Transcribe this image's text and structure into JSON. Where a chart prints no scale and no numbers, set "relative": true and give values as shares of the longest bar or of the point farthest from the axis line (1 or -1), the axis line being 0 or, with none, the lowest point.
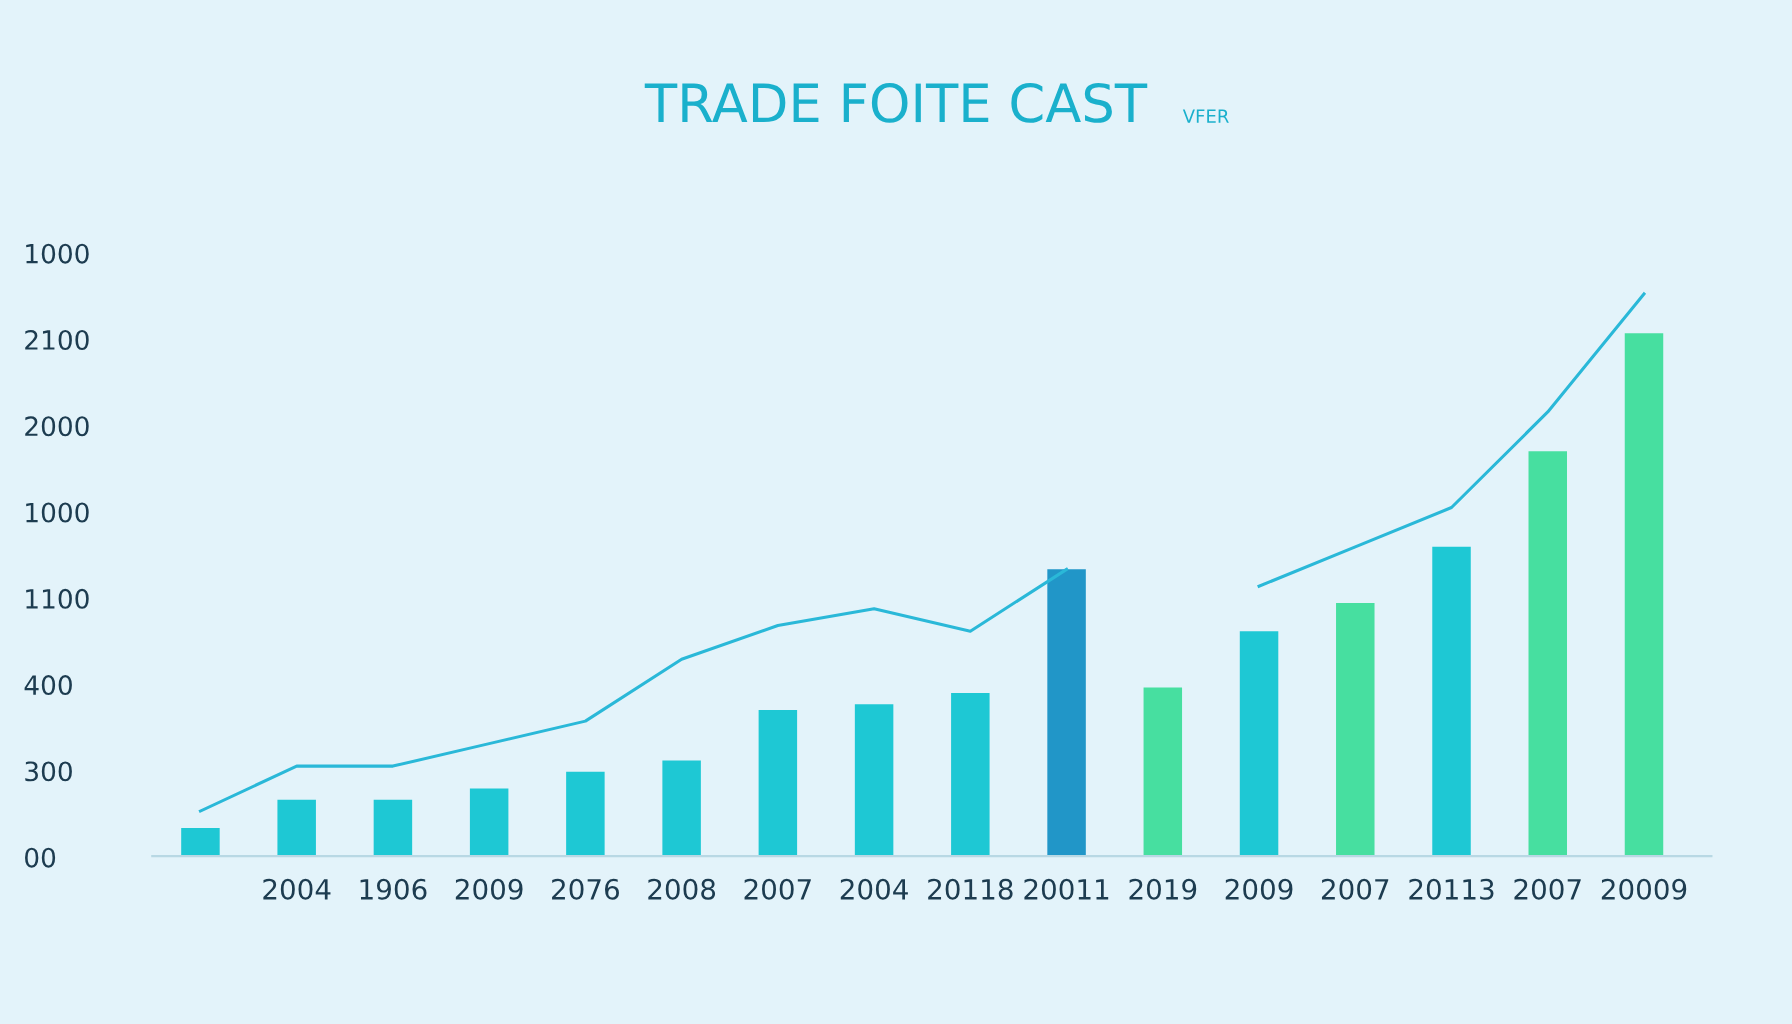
{
  "chart_data": {
    "type": "bar",
    "title": "TRADE FOITE CAST",
    "subtitle": "VFER",
    "relative": true,
    "categories": [
      null,
      "2004",
      "1906",
      "2009",
      "2076",
      "2008",
      "2007",
      "2004",
      "20118",
      "20011",
      "2019",
      "2009",
      "2007",
      "20113",
      "2007",
      "20009"
    ],
    "series": [
      {
        "values": [
          0.05,
          0.1,
          0.1,
          0.12,
          0.15,
          0.17,
          0.26,
          0.27,
          0.29,
          0.51,
          0.3,
          0.4,
          0.45,
          0.55,
          0.72,
          0.93
        ],
        "colors": [
          "#1ec8d4",
          "#1ec8d4",
          "#1ec8d4",
          "#1ec8d4",
          "#1ec8d4",
          "#1ec8d4",
          "#1ec8d4",
          "#1ec8d4",
          "#1ec8d4",
          "#2196c8",
          "#47dfa0",
          "#1ec8d4",
          "#47dfa0",
          "#1ec8d4",
          "#47dfa0",
          "#47dfa0"
        ]
      },
      {
        "type": "line",
        "color": "#2ab8d8",
        "values": [
          0.08,
          0.16,
          0.16,
          0.2,
          0.24,
          0.35,
          0.41,
          0.44,
          0.4,
          0.51,
          null,
          0.48,
          0.55,
          0.62,
          0.79,
          1.0
        ]
      }
    ],
    "annotations": [
      "1000",
      "2100",
      "2000",
      "1000",
      "1100",
      "400",
      "300",
      "00"
    ],
    "grid": false,
    "legend": false
  }
}
